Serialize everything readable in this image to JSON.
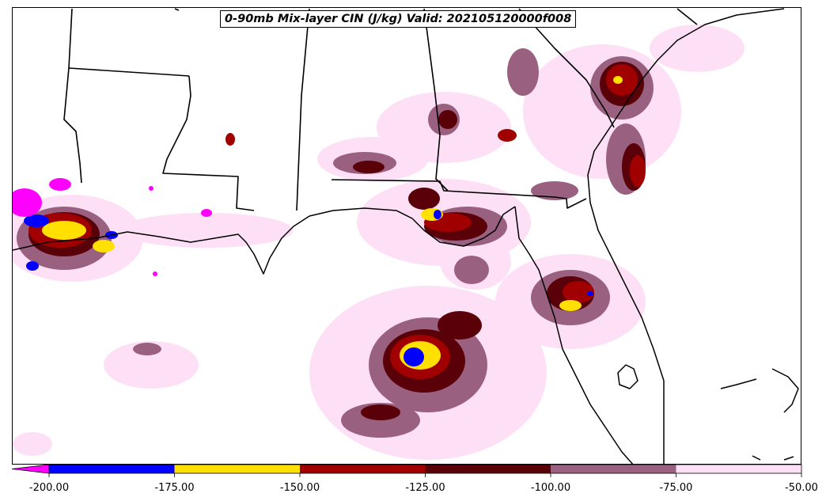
{
  "map": {
    "title": "0-90mb Mix-layer CIN (J/kg) Valid: 202105120000f008",
    "region": "Southeastern United States / northern Gulf of Mexico",
    "background_color": "#ffffff",
    "boundary_color": "#000000"
  },
  "colorbar": {
    "extend": "min",
    "bins": [
      {
        "from": -200,
        "to": -175,
        "color": "#0000ff"
      },
      {
        "from": -175,
        "to": -150,
        "color": "#ffe000"
      },
      {
        "from": -150,
        "to": -125,
        "color": "#a00000"
      },
      {
        "from": -125,
        "to": -100,
        "color": "#5a0008"
      },
      {
        "from": -100,
        "to": -75,
        "color": "#9a6080"
      },
      {
        "from": -75,
        "to": -50,
        "color": "#fde0f6"
      }
    ],
    "under_color": "#ff00ff",
    "tick_labels": [
      "-200.00",
      "-175.00",
      "-150.00",
      "-125.00",
      "-100.00",
      "-75.00",
      "-50.00"
    ]
  }
}
